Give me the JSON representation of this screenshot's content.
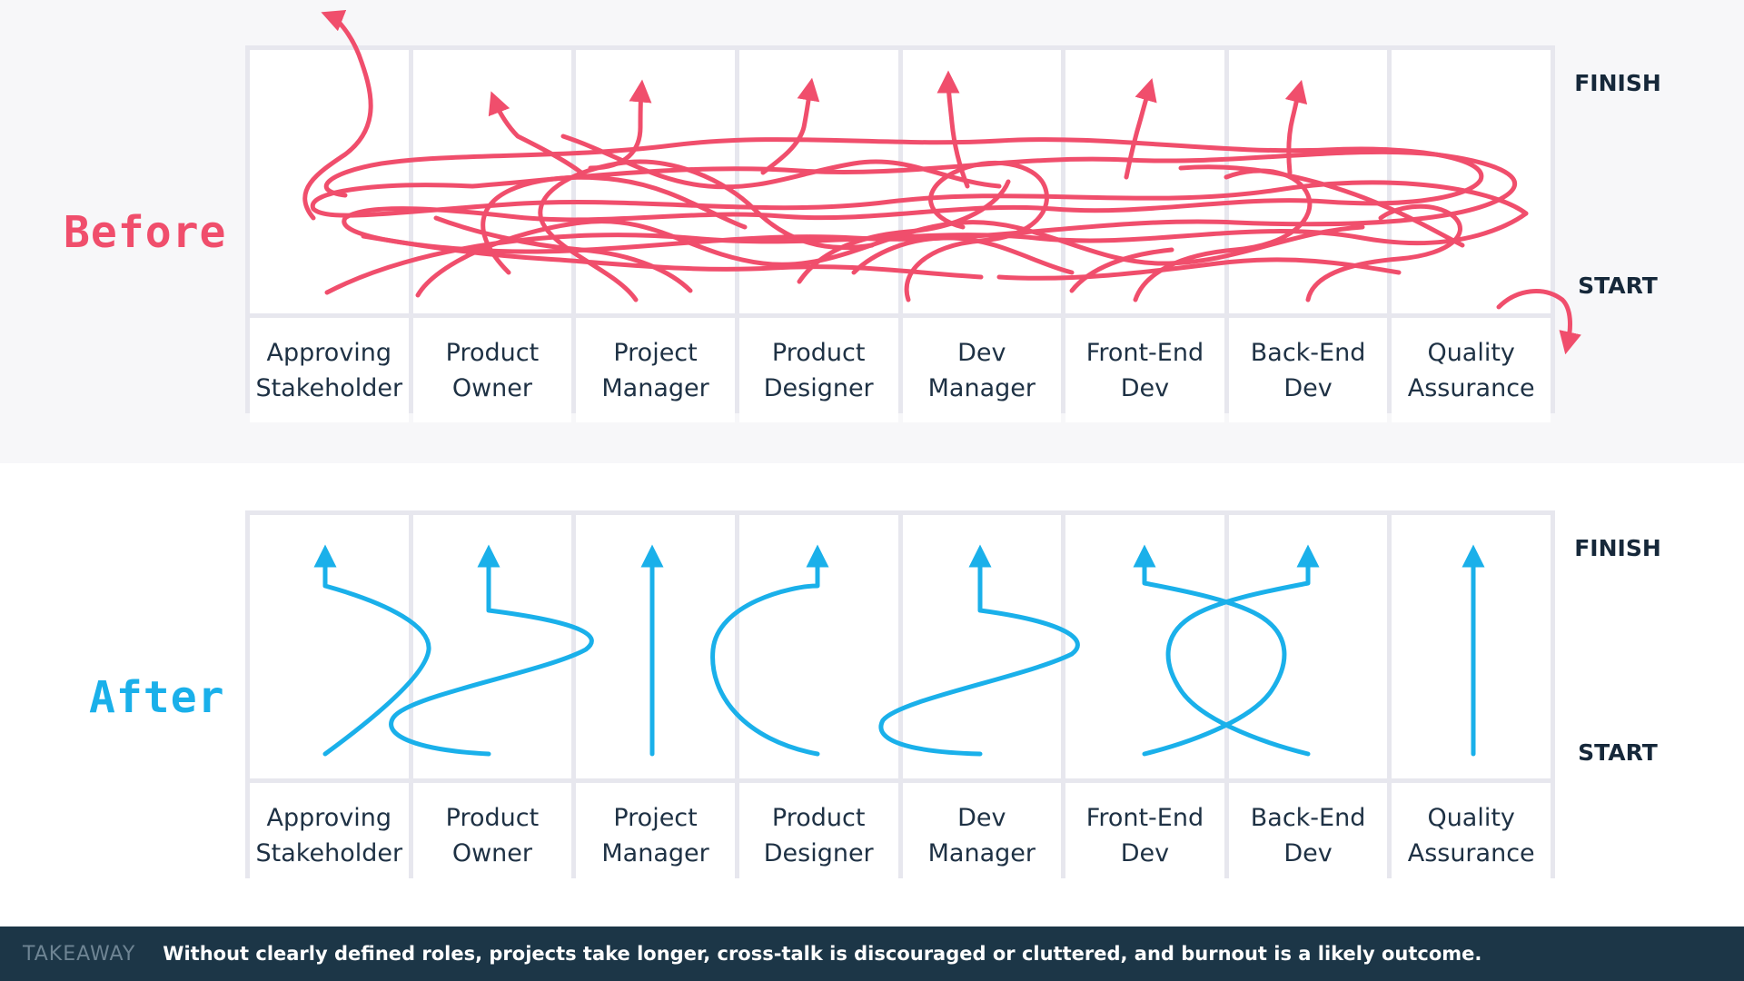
{
  "before": {
    "title": "Before",
    "finish": "FINISH",
    "start": "START",
    "color": "#f04e6c"
  },
  "after": {
    "title": "After",
    "finish": "FINISH",
    "start": "START",
    "color": "#1ab0ea"
  },
  "lanes": [
    {
      "line1": "Approving",
      "line2": "Stakeholder"
    },
    {
      "line1": "Product",
      "line2": "Owner"
    },
    {
      "line1": "Project",
      "line2": "Manager"
    },
    {
      "line1": "Product",
      "line2": "Designer"
    },
    {
      "line1": "Dev",
      "line2": "Manager"
    },
    {
      "line1": "Front-End",
      "line2": "Dev"
    },
    {
      "line1": "Back-End",
      "line2": "Dev"
    },
    {
      "line1": "Quality",
      "line2": "Assurance"
    }
  ],
  "footer": {
    "tag": "TAKEAWAY",
    "text": "Without clearly defined roles, projects take longer, cross-talk is discouraged or cluttered, and burnout is a likely outcome."
  }
}
